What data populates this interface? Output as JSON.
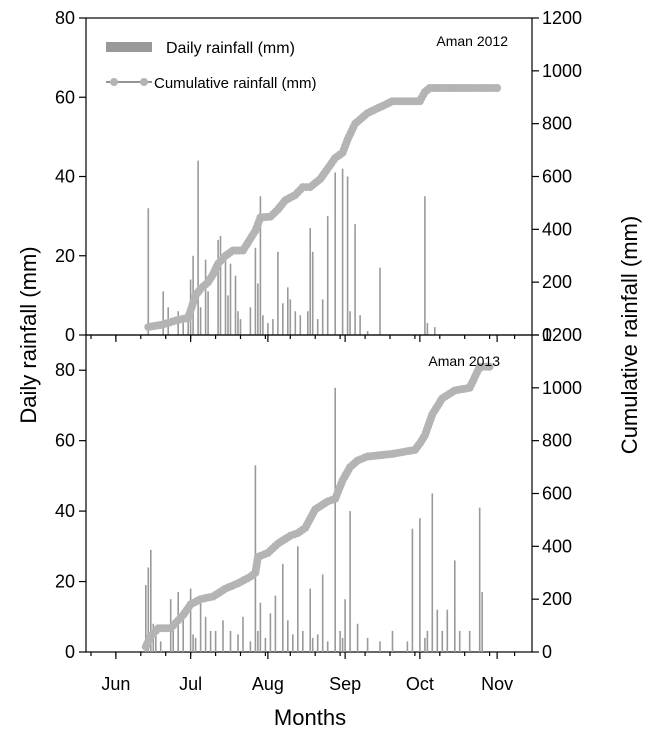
{
  "chart_data": [
    {
      "type": "bar+line",
      "panel_label": "Aman 2012",
      "ylabel_left": "Daily rainfall (mm)",
      "ylabel_right": "Cumulative rainfall (mm)",
      "ylim_left": [
        0,
        80
      ],
      "ylim_right": [
        0,
        1200
      ],
      "left_ticks": [
        0,
        20,
        40,
        60,
        80
      ],
      "right_ticks": [
        0,
        200,
        400,
        600,
        800,
        1000,
        1200
      ],
      "legend": {
        "position": "top-left",
        "entries": [
          "Daily rainfall (mm)",
          "Cumulative rainfall (mm)"
        ]
      },
      "series": [
        {
          "name": "Daily rainfall (mm)",
          "kind": "bar",
          "x_dates": [
            "2012-06-14",
            "2012-06-20",
            "2012-06-22",
            "2012-06-26",
            "2012-06-28",
            "2012-06-30",
            "2012-07-01",
            "2012-07-02",
            "2012-07-04",
            "2012-07-05",
            "2012-07-07",
            "2012-07-08",
            "2012-07-12",
            "2012-07-13",
            "2012-07-15",
            "2012-07-16",
            "2012-07-17",
            "2012-07-19",
            "2012-07-20",
            "2012-07-21",
            "2012-07-25",
            "2012-07-27",
            "2012-07-28",
            "2012-07-29",
            "2012-07-30",
            "2012-08-01",
            "2012-08-03",
            "2012-08-05",
            "2012-08-07",
            "2012-08-09",
            "2012-08-10",
            "2012-08-12",
            "2012-08-14",
            "2012-08-17",
            "2012-08-18",
            "2012-08-19",
            "2012-08-21",
            "2012-08-23",
            "2012-08-25",
            "2012-08-28",
            "2012-08-31",
            "2012-09-02",
            "2012-09-03",
            "2012-09-05",
            "2012-09-07",
            "2012-09-10",
            "2012-09-15",
            "2012-10-03",
            "2012-10-04",
            "2012-10-07"
          ],
          "values": [
            32,
            11,
            7,
            6,
            4,
            5,
            14,
            20,
            44,
            7,
            19,
            11,
            24,
            25,
            21,
            10,
            18,
            15,
            6,
            4,
            7,
            22,
            13,
            35,
            5,
            3,
            4,
            21,
            8,
            12,
            9,
            6,
            5,
            6,
            27,
            21,
            4,
            9,
            30,
            41,
            42,
            40,
            6,
            28,
            5,
            1,
            17,
            35,
            3,
            2
          ]
        },
        {
          "name": "Cumulative rainfall (mm)",
          "kind": "line",
          "x_dates": [
            "2012-06-14",
            "2012-06-20",
            "2012-06-25",
            "2012-06-30",
            "2012-07-03",
            "2012-07-05",
            "2012-07-08",
            "2012-07-10",
            "2012-07-12",
            "2012-07-15",
            "2012-07-18",
            "2012-07-22",
            "2012-07-24",
            "2012-07-27",
            "2012-07-29",
            "2012-08-02",
            "2012-08-05",
            "2012-08-08",
            "2012-08-12",
            "2012-08-15",
            "2012-08-18",
            "2012-08-22",
            "2012-08-25",
            "2012-08-28",
            "2012-08-31",
            "2012-09-02",
            "2012-09-05",
            "2012-09-10",
            "2012-09-20",
            "2012-10-01",
            "2012-10-03",
            "2012-10-05",
            "2012-10-20",
            "2012-11-01"
          ],
          "values": [
            30,
            40,
            55,
            65,
            150,
            175,
            200,
            230,
            270,
            300,
            320,
            320,
            350,
            395,
            445,
            448,
            475,
            510,
            530,
            560,
            560,
            590,
            630,
            670,
            690,
            740,
            800,
            840,
            885,
            885,
            920,
            935,
            935,
            935
          ]
        }
      ]
    },
    {
      "type": "bar+line",
      "panel_label": "Aman 2013",
      "ylim_left": [
        0,
        90
      ],
      "ylim_right": [
        0,
        1200
      ],
      "left_ticks": [
        0,
        20,
        40,
        60,
        80
      ],
      "right_ticks": [
        0,
        200,
        400,
        600,
        800,
        1000,
        1200
      ],
      "series": [
        {
          "name": "Daily rainfall (mm)",
          "kind": "bar",
          "x_dates": [
            "2013-06-13",
            "2013-06-14",
            "2013-06-15",
            "2013-06-16",
            "2013-06-17",
            "2013-06-19",
            "2013-06-23",
            "2013-06-24",
            "2013-06-26",
            "2013-06-28",
            "2013-07-01",
            "2013-07-02",
            "2013-07-03",
            "2013-07-05",
            "2013-07-07",
            "2013-07-09",
            "2013-07-11",
            "2013-07-14",
            "2013-07-17",
            "2013-07-20",
            "2013-07-22",
            "2013-07-25",
            "2013-07-27",
            "2013-07-28",
            "2013-07-29",
            "2013-07-31",
            "2013-08-02",
            "2013-08-04",
            "2013-08-07",
            "2013-08-09",
            "2013-08-11",
            "2013-08-13",
            "2013-08-15",
            "2013-08-18",
            "2013-08-19",
            "2013-08-21",
            "2013-08-23",
            "2013-08-25",
            "2013-08-28",
            "2013-08-30",
            "2013-08-31",
            "2013-09-01",
            "2013-09-03",
            "2013-09-06",
            "2013-09-10",
            "2013-09-15",
            "2013-09-20",
            "2013-09-26",
            "2013-09-28",
            "2013-10-01",
            "2013-10-03",
            "2013-10-04",
            "2013-10-06",
            "2013-10-08",
            "2013-10-10",
            "2013-10-12",
            "2013-10-15",
            "2013-10-17",
            "2013-10-21",
            "2013-10-25",
            "2013-10-26"
          ],
          "values": [
            19,
            24,
            29,
            8,
            6,
            3,
            15,
            6,
            17,
            12,
            18,
            5,
            4,
            14,
            10,
            6,
            6,
            9,
            6,
            5,
            10,
            3,
            53,
            6,
            14,
            4,
            11,
            16,
            25,
            9,
            5,
            30,
            6,
            18,
            4,
            5,
            22,
            3,
            75,
            6,
            4,
            15,
            40,
            8,
            4,
            3,
            6,
            3,
            35,
            38,
            4,
            6,
            45,
            12,
            6,
            12,
            26,
            6,
            6,
            41,
            17
          ]
        },
        {
          "name": "Cumulative rainfall (mm)",
          "kind": "line",
          "x_dates": [
            "2013-06-13",
            "2013-06-15",
            "2013-06-18",
            "2013-06-23",
            "2013-06-26",
            "2013-06-28",
            "2013-07-01",
            "2013-07-05",
            "2013-07-10",
            "2013-07-15",
            "2013-07-20",
            "2013-07-25",
            "2013-07-27",
            "2013-07-28",
            "2013-08-01",
            "2013-08-05",
            "2013-08-10",
            "2013-08-13",
            "2013-08-16",
            "2013-08-20",
            "2013-08-25",
            "2013-08-28",
            "2013-08-31",
            "2013-09-03",
            "2013-09-06",
            "2013-09-10",
            "2013-09-20",
            "2013-09-29",
            "2013-10-01",
            "2013-10-03",
            "2013-10-06",
            "2013-10-10",
            "2013-10-15",
            "2013-10-21",
            "2013-10-25",
            "2013-10-29"
          ],
          "values": [
            20,
            60,
            90,
            90,
            120,
            140,
            180,
            200,
            210,
            240,
            260,
            285,
            300,
            360,
            375,
            410,
            440,
            450,
            470,
            540,
            570,
            580,
            650,
            700,
            725,
            740,
            750,
            765,
            790,
            820,
            900,
            960,
            990,
            1000,
            1080,
            1080
          ]
        }
      ]
    }
  ],
  "x_axis": {
    "title": "Months",
    "ticks": [
      {
        "label": "Jun",
        "date": "06-01"
      },
      {
        "label": "Jul",
        "date": "07-01"
      },
      {
        "label": "Aug",
        "date": "08-01"
      },
      {
        "label": "Sep",
        "date": "09-01"
      },
      {
        "label": "Oct",
        "date": "10-01"
      },
      {
        "label": "Nov",
        "date": "11-01"
      }
    ],
    "range": [
      "05-20",
      "11-15"
    ]
  },
  "colors": {
    "bars": "#9a9a9a",
    "line": "#555555",
    "markers": "#b4b4b4",
    "legend_bar": "#999999"
  }
}
